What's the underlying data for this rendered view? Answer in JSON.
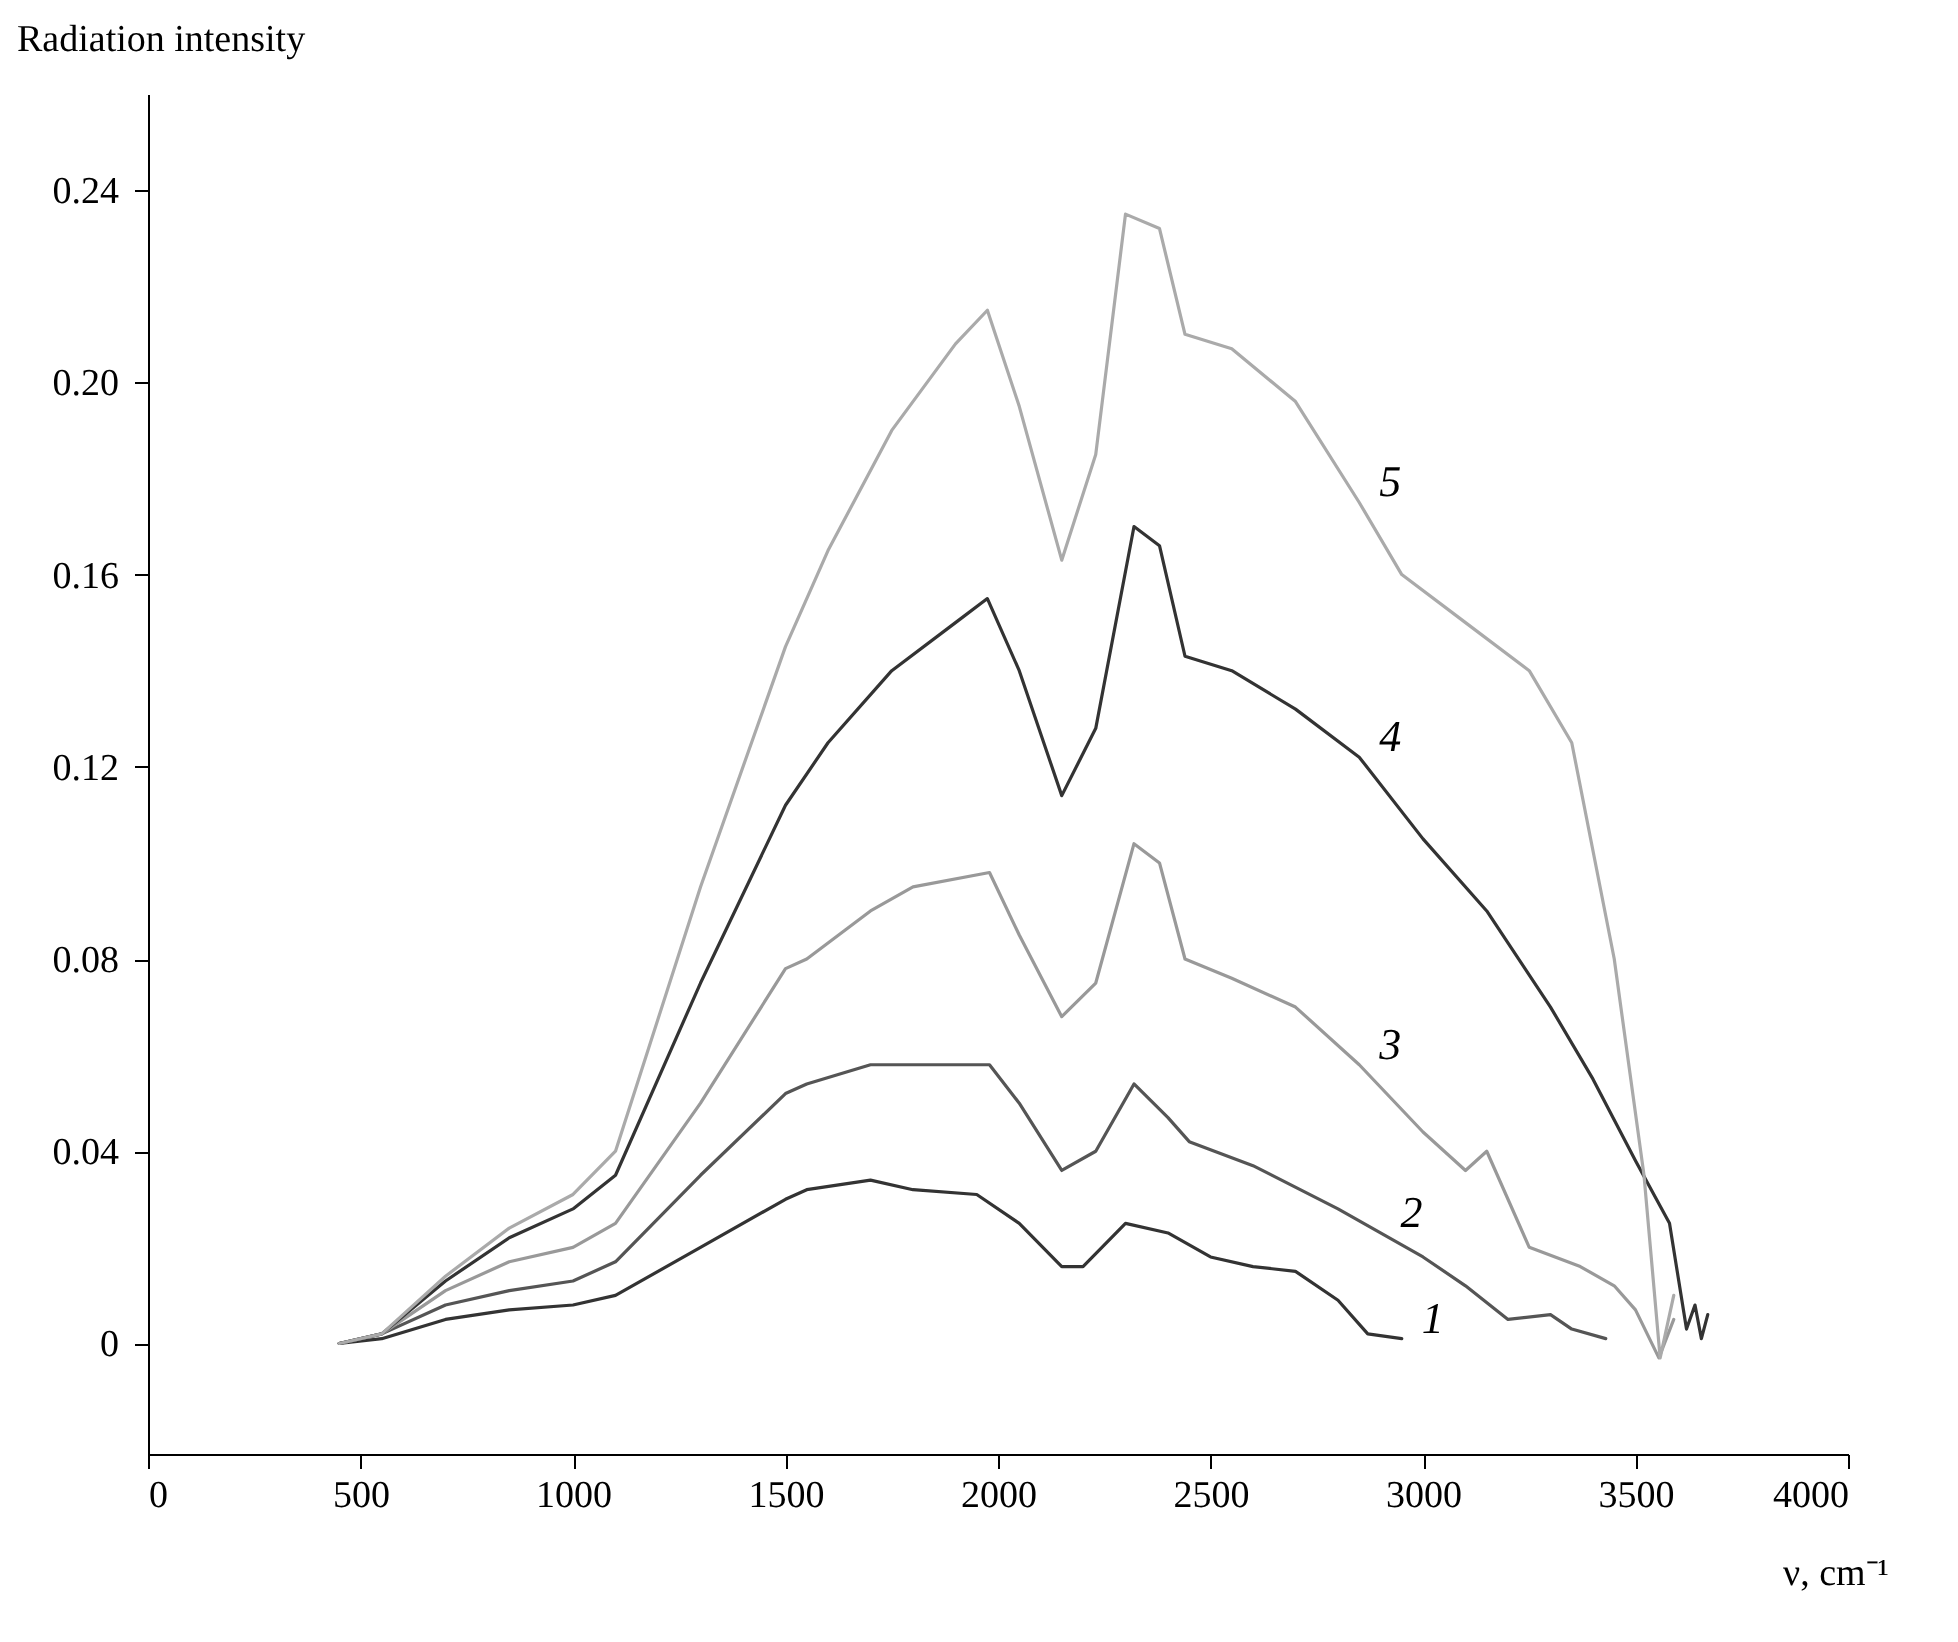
{
  "chart_data": {
    "type": "line",
    "xlabel": "ν, cm⁻¹",
    "ylabel": "Radiation intensity",
    "xlim": [
      0,
      4000
    ],
    "ylim": [
      -0.023,
      0.26
    ],
    "xticks": [
      0,
      500,
      1000,
      1500,
      2000,
      2500,
      3000,
      3500,
      4000
    ],
    "yticks": [
      0,
      0.04,
      0.08,
      0.12,
      0.16,
      {
        "value": 0.2,
        "label": "0.20"
      },
      0.24
    ],
    "grid": false,
    "series": [
      {
        "color": "#333333",
        "x": [
          450,
          550,
          700,
          850,
          1000,
          1100,
          1300,
          1500,
          1550,
          1700,
          1800,
          1950,
          2050,
          2150,
          2200,
          2300,
          2400,
          2500,
          2600,
          2700,
          2800,
          2870,
          2950
        ],
        "values": [
          0,
          0.001,
          0.005,
          0.007,
          0.008,
          0.01,
          0.02,
          0.03,
          0.032,
          0.034,
          0.032,
          0.031,
          0.025,
          0.016,
          0.016,
          0.025,
          0.023,
          0.018,
          0.016,
          0.015,
          0.009,
          0.002,
          0.001
        ]
      },
      {
        "color": "#555555",
        "x": [
          450,
          550,
          700,
          850,
          1000,
          1100,
          1300,
          1500,
          1550,
          1700,
          1850,
          1980,
          2050,
          2150,
          2230,
          2320,
          2400,
          2450,
          2600,
          2800,
          2900,
          3000,
          3100,
          3200,
          3300,
          3350,
          3430
        ],
        "values": [
          0,
          0.002,
          0.008,
          0.011,
          0.013,
          0.017,
          0.035,
          0.052,
          0.054,
          0.058,
          0.058,
          0.058,
          0.05,
          0.036,
          0.04,
          0.054,
          0.047,
          0.042,
          0.037,
          0.028,
          0.023,
          0.018,
          0.012,
          0.005,
          0.006,
          0.003,
          0.001
        ]
      },
      {
        "color": "#999999",
        "x": [
          450,
          550,
          700,
          850,
          1000,
          1100,
          1300,
          1500,
          1550,
          1700,
          1800,
          1980,
          2050,
          2150,
          2230,
          2320,
          2380,
          2440,
          2550,
          2700,
          2850,
          3000,
          3100,
          3150,
          3250,
          3370,
          3450,
          3500,
          3555,
          3590
        ],
        "values": [
          0,
          0.002,
          0.011,
          0.017,
          0.02,
          0.025,
          0.05,
          0.078,
          0.08,
          0.09,
          0.095,
          0.098,
          0.085,
          0.068,
          0.075,
          0.104,
          0.1,
          0.08,
          0.076,
          0.07,
          0.058,
          0.044,
          0.036,
          0.04,
          0.02,
          0.016,
          0.012,
          0.007,
          -0.003,
          0.005
        ]
      },
      {
        "color": "#333333",
        "x": [
          450,
          550,
          700,
          850,
          1000,
          1100,
          1300,
          1500,
          1600,
          1750,
          1900,
          1975,
          2050,
          2150,
          2230,
          2320,
          2380,
          2440,
          2550,
          2700,
          2850,
          3000,
          3150,
          3300,
          3400,
          3500,
          3580,
          3620,
          3640,
          3655,
          3670
        ],
        "values": [
          0,
          0.002,
          0.013,
          0.022,
          0.028,
          0.035,
          0.075,
          0.112,
          0.125,
          0.14,
          0.15,
          0.155,
          0.14,
          0.114,
          0.128,
          0.17,
          0.166,
          0.143,
          0.14,
          0.132,
          0.122,
          0.105,
          0.09,
          0.07,
          0.055,
          0.038,
          0.025,
          0.003,
          0.008,
          0.001,
          0.006
        ]
      },
      {
        "color": "#aaaaaa",
        "x": [
          450,
          550,
          700,
          850,
          1000,
          1100,
          1300,
          1500,
          1600,
          1750,
          1900,
          1975,
          2050,
          2150,
          2230,
          2300,
          2380,
          2440,
          2550,
          2700,
          2850,
          2950,
          3100,
          3250,
          3350,
          3450,
          3520,
          3558,
          3590
        ],
        "values": [
          0,
          0.002,
          0.014,
          0.024,
          0.031,
          0.04,
          0.095,
          0.145,
          0.165,
          0.19,
          0.208,
          0.215,
          0.195,
          0.163,
          0.185,
          0.235,
          0.232,
          0.21,
          0.207,
          0.196,
          0.175,
          0.16,
          0.15,
          0.14,
          0.125,
          0.08,
          0.035,
          -0.003,
          0.01
        ]
      }
    ],
    "annotations": [
      {
        "text": "1",
        "x": 2950,
        "y": 0.001
      },
      {
        "text": "2",
        "x": 2900,
        "y": 0.023
      },
      {
        "text": "3",
        "x": 2850,
        "y": 0.058
      },
      {
        "text": "4",
        "x": 2850,
        "y": 0.122
      },
      {
        "text": "5",
        "x": 2850,
        "y": 0.175
      }
    ]
  }
}
